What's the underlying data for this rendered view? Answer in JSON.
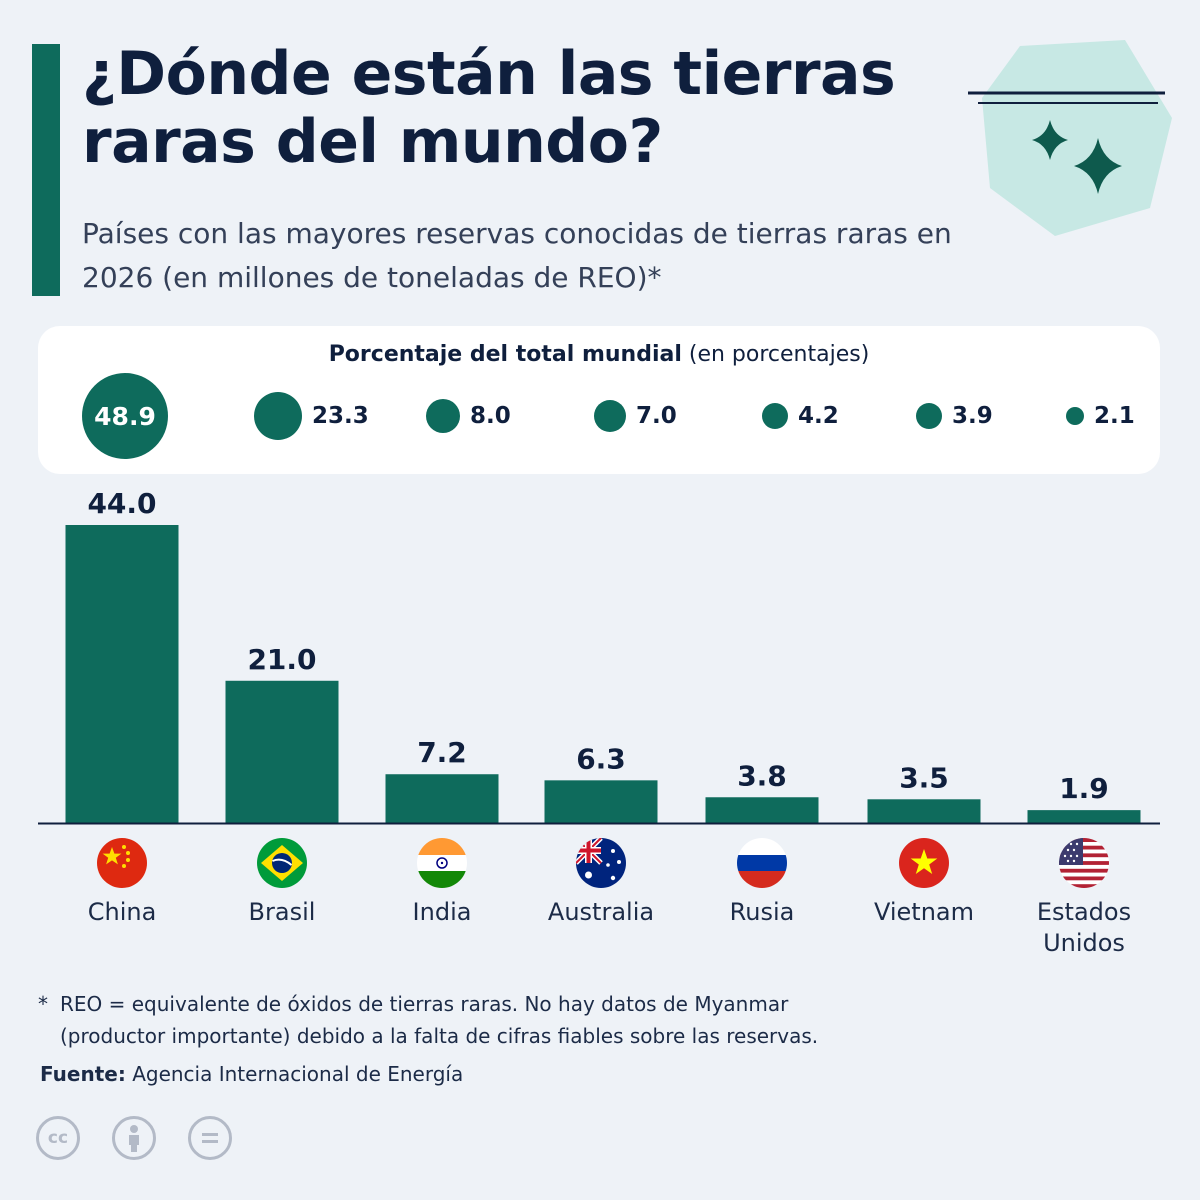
{
  "title": "¿Dónde están las tierras raras del mundo?",
  "subtitle": "Países con las mayores reservas conocidas de tierras raras en 2026 (en millones de toneladas de REO)*",
  "percent_panel": {
    "heading_bold": "Porcentaje del total mundial",
    "heading_rest": " (en porcentajes)",
    "values": [
      "48.9",
      "23.3",
      "8.0",
      "7.0",
      "4.2",
      "3.9",
      "2.1"
    ]
  },
  "chart_data": {
    "type": "bar",
    "title": "¿Dónde están las tierras raras del mundo?",
    "subtitle": "Países con las mayores reservas conocidas de tierras raras en 2026 (en millones de toneladas de REO)*",
    "categories": [
      "China",
      "Brasil",
      "India",
      "Australia",
      "Rusia",
      "Vietnam",
      "Estados Unidos"
    ],
    "values": [
      44.0,
      21.0,
      7.2,
      6.3,
      3.8,
      3.5,
      1.9
    ],
    "value_labels": [
      "44.0",
      "21.0",
      "7.2",
      "6.3",
      "3.8",
      "3.5",
      "1.9"
    ],
    "share_of_world_total_pct": [
      48.9,
      23.3,
      8.0,
      7.0,
      4.2,
      3.9,
      2.1
    ],
    "ylim": [
      0,
      44.0
    ],
    "xlabel": "",
    "ylabel": "",
    "grid": false,
    "bar_color": "#0e6b5c"
  },
  "countries": [
    {
      "name": "China",
      "flag_icon": "china-flag-icon"
    },
    {
      "name": "Brasil",
      "flag_icon": "brazil-flag-icon"
    },
    {
      "name": "India",
      "flag_icon": "india-flag-icon"
    },
    {
      "name": "Australia",
      "flag_icon": "australia-flag-icon"
    },
    {
      "name": "Rusia",
      "flag_icon": "russia-flag-icon"
    },
    {
      "name": "Vietnam",
      "flag_icon": "vietnam-flag-icon"
    },
    {
      "name": "Estados Unidos",
      "flag_icon": "usa-flag-icon"
    }
  ],
  "footnote": {
    "star": "*",
    "line1": "REO = equivalente de óxidos de tierras raras. No hay datos de Myanmar",
    "line2": "(productor importante) debido a la falta de cifras fiables sobre las reservas."
  },
  "source": {
    "label": "Fuente:",
    "value": "Agencia Internacional de Energía"
  },
  "license": {
    "cc": "cc",
    "icons": [
      "cc-icon",
      "attribution-icon",
      "no-derivatives-icon"
    ]
  },
  "colors": {
    "accent": "#0e6b5c",
    "text": "#0f1f3d",
    "background": "#eef2f7",
    "deco_hex": "#bfe6e0"
  }
}
